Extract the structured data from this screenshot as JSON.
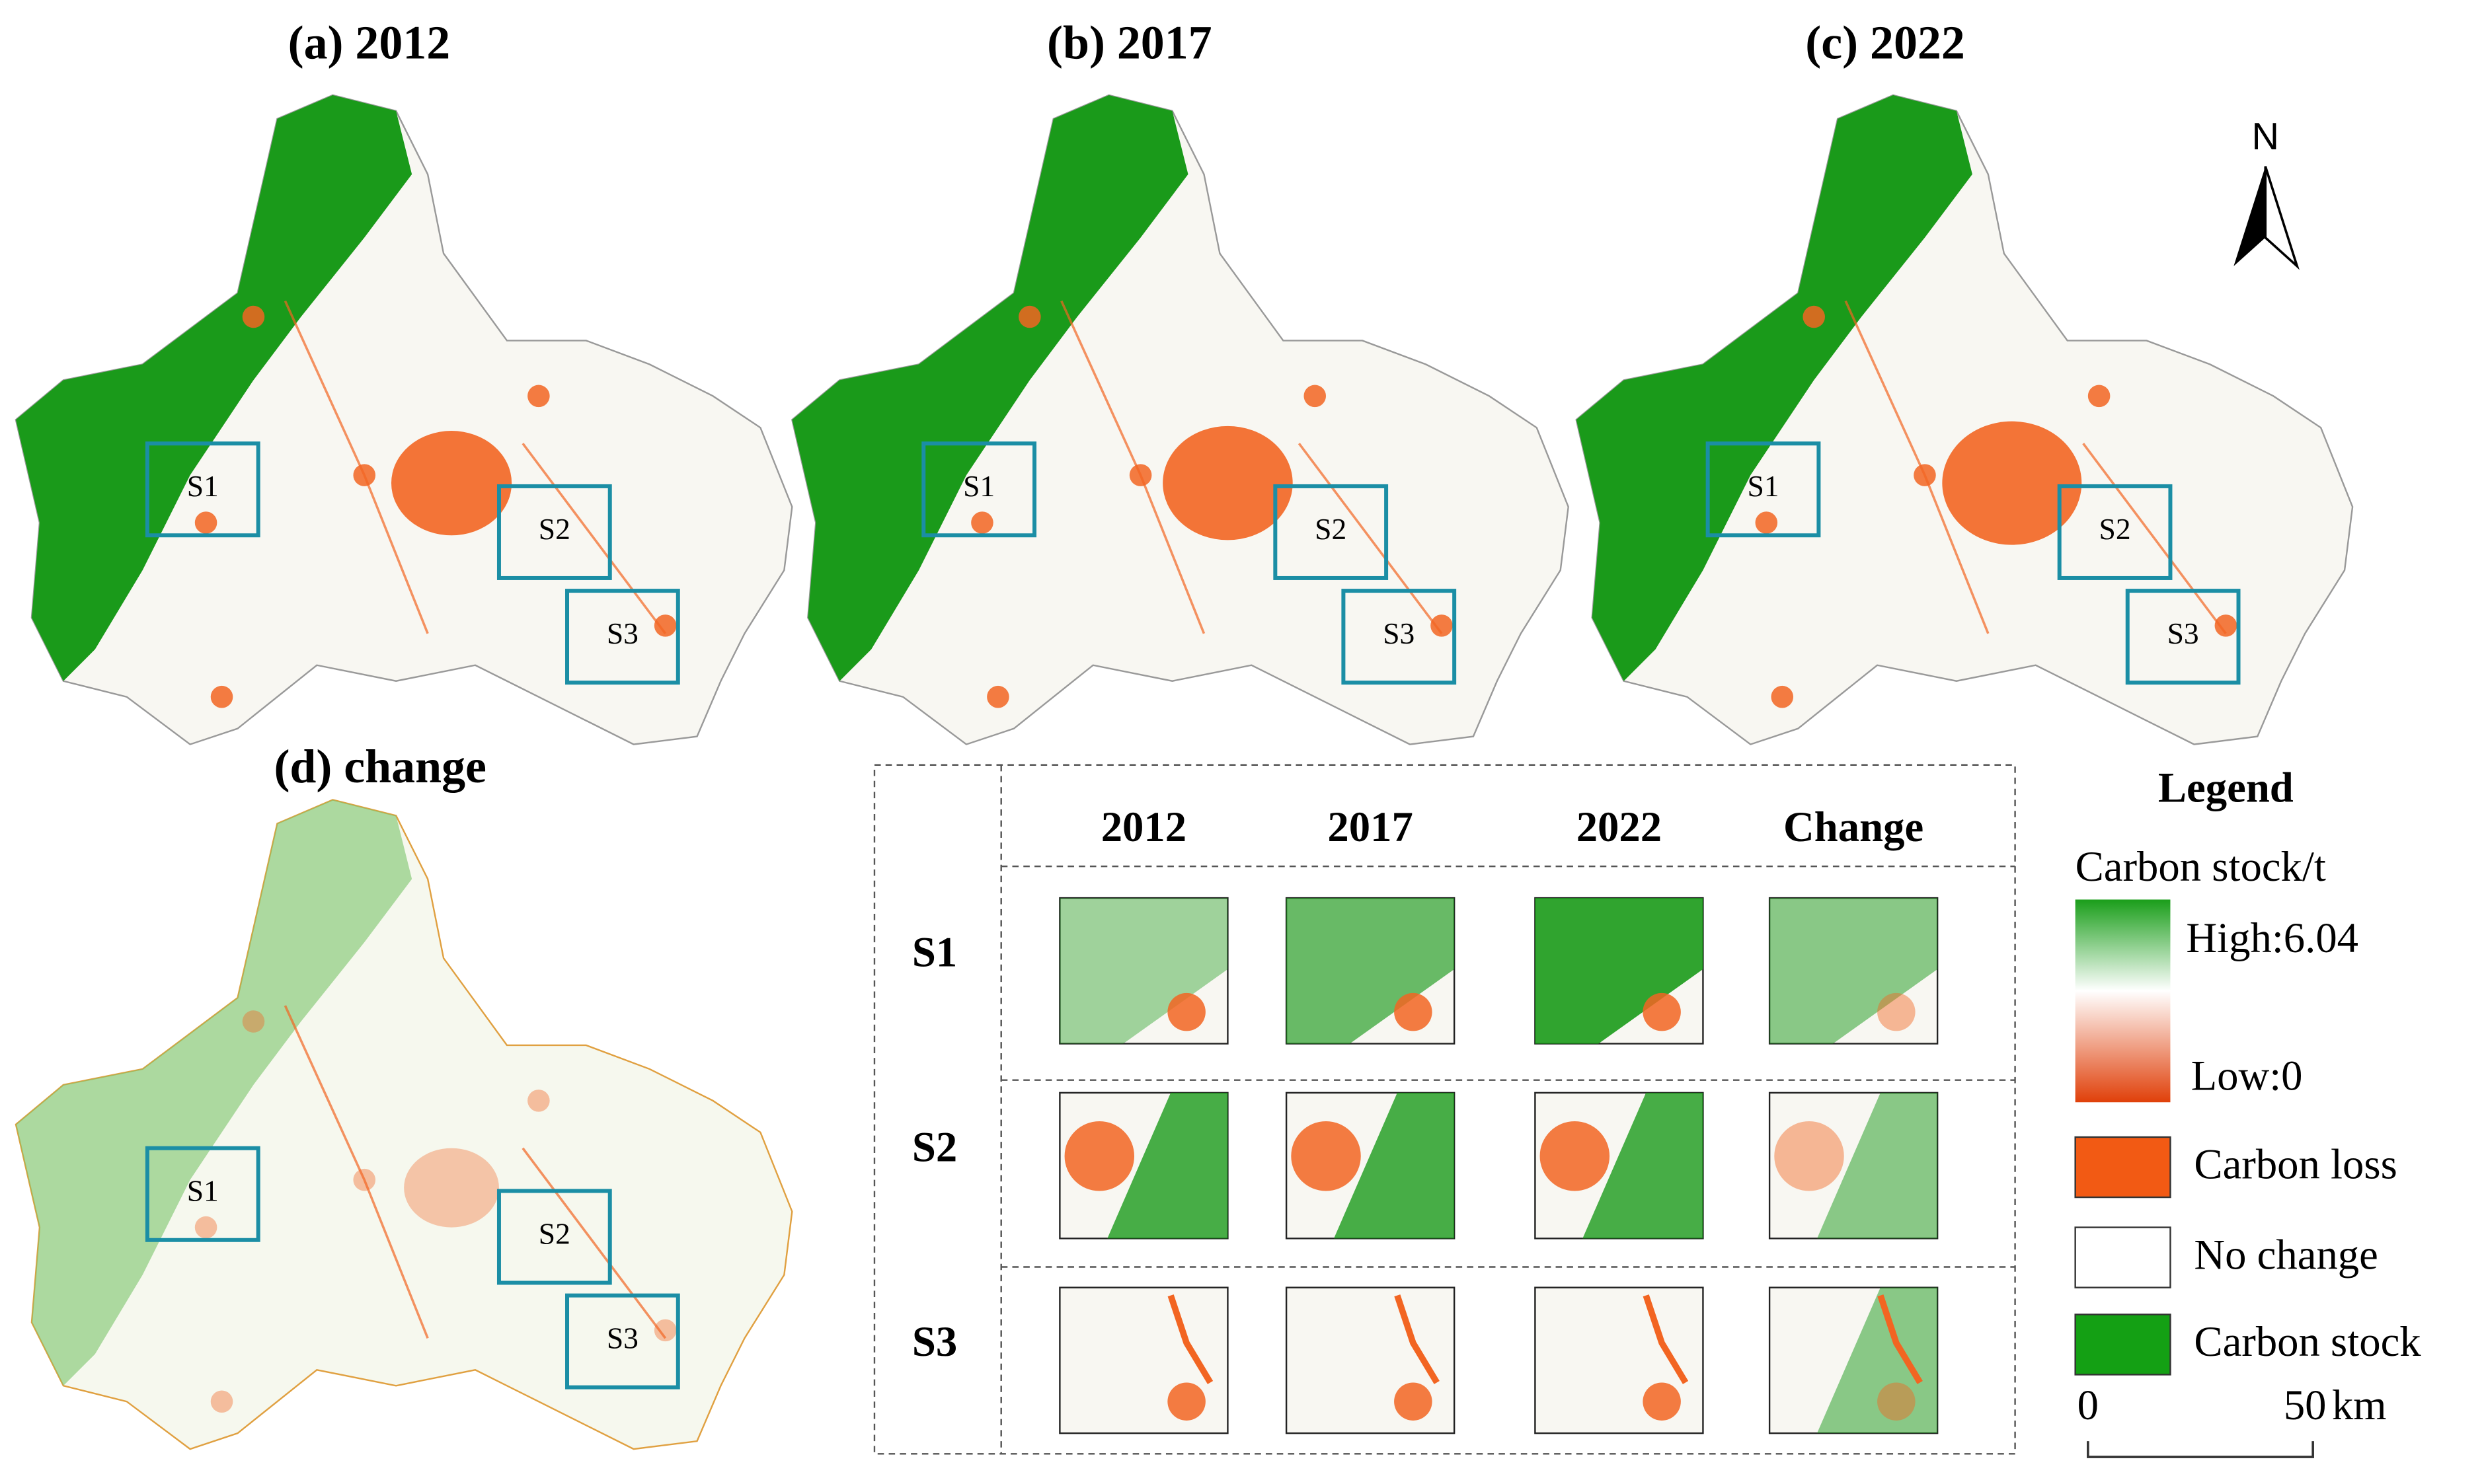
{
  "panels": [
    {
      "title": "(a) 2012",
      "boxes": [
        "S1",
        "S2",
        "S3"
      ]
    },
    {
      "title": "(b) 2017",
      "boxes": [
        "S1",
        "S2",
        "S3"
      ]
    },
    {
      "title": "(c) 2022",
      "boxes": [
        "S1",
        "S2",
        "S3"
      ]
    },
    {
      "title": "(d) change",
      "boxes": [
        "S1",
        "S2",
        "S3"
      ]
    }
  ],
  "north": "N",
  "inset": {
    "columns": [
      "2012",
      "2017",
      "2022",
      "Change"
    ],
    "rows": [
      "S1",
      "S2",
      "S3"
    ]
  },
  "legend": {
    "title": "Legend",
    "subtitle": "Carbon stock/t",
    "high": "High:6.04",
    "low": "Low:0",
    "items": [
      "Carbon loss",
      "No change",
      "Carbon stock"
    ]
  },
  "scale_bar": {
    "start": "0",
    "end": "50",
    "unit": "km"
  }
}
